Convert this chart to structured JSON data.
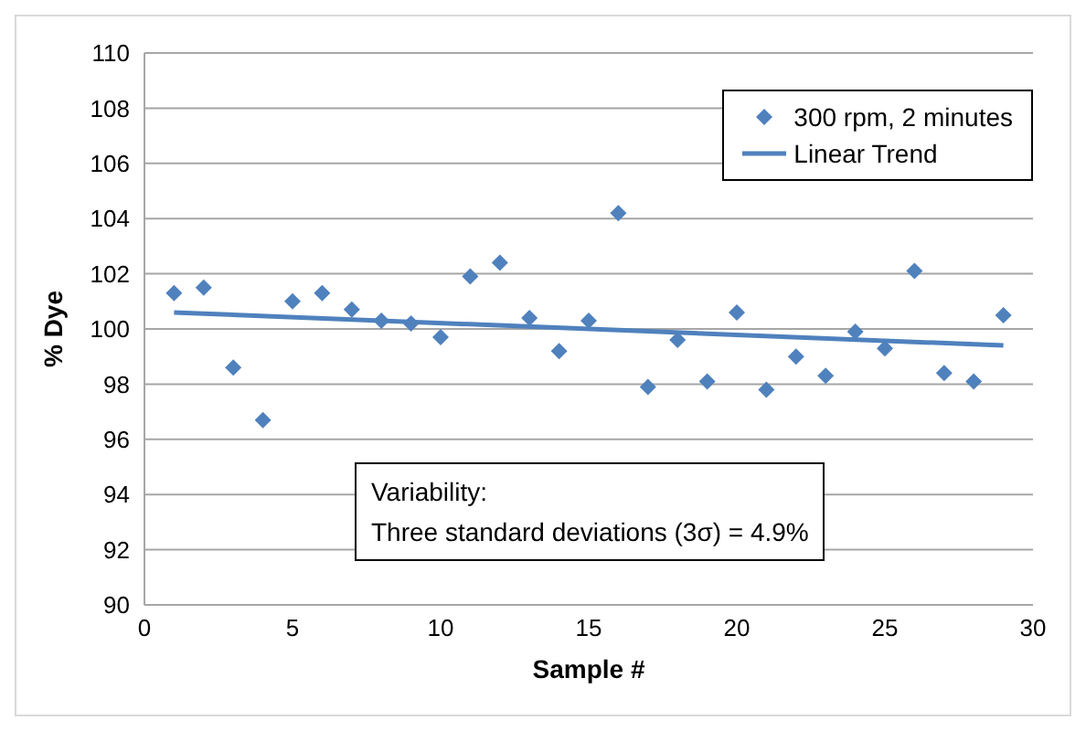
{
  "chart_data": {
    "type": "scatter",
    "xlabel": "Sample #",
    "ylabel": "% Dye",
    "x": [
      1,
      2,
      3,
      4,
      5,
      6,
      7,
      8,
      9,
      10,
      11,
      12,
      13,
      14,
      15,
      16,
      17,
      18,
      19,
      20,
      21,
      22,
      23,
      24,
      25,
      26,
      27,
      28,
      29
    ],
    "series": [
      {
        "name": "300 rpm, 2 minutes",
        "color": "#4f81bd",
        "marker": "diamond",
        "values": [
          101.3,
          101.5,
          98.6,
          96.7,
          101.0,
          101.3,
          100.7,
          100.3,
          100.2,
          99.7,
          101.9,
          102.4,
          100.4,
          99.2,
          100.3,
          104.2,
          97.9,
          99.6,
          98.1,
          100.6,
          97.8,
          99.0,
          98.3,
          99.9,
          99.3,
          102.1,
          98.4,
          98.1,
          100.5
        ]
      },
      {
        "name": "Linear Trend",
        "type": "line",
        "color": "#4f81bd",
        "line_style": "solid",
        "x": [
          1,
          29
        ],
        "values": [
          100.6,
          99.4
        ]
      }
    ],
    "xlim": [
      0,
      30
    ],
    "xticks": [
      0,
      5,
      10,
      15,
      20,
      25,
      30
    ],
    "ylim": [
      90,
      110
    ],
    "yticks": [
      90,
      92,
      94,
      96,
      98,
      100,
      102,
      104,
      106,
      108,
      110
    ],
    "grid": "y",
    "legend": "top right",
    "annotations": [
      "Variability:\nThree standard deviations (3σ) = 4.9%"
    ]
  }
}
